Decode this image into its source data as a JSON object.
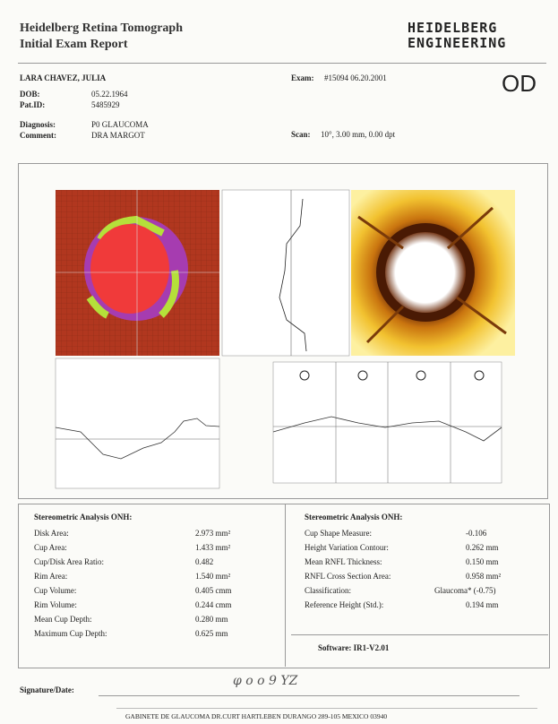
{
  "header": {
    "title": "Heidelberg Retina Tomograph",
    "subtitle": "Initial Exam Report",
    "logo_top": "HEIDELBERG",
    "logo_bottom": "ENGINEERING"
  },
  "patient": {
    "name": "LARA CHAVEZ, JULIA",
    "exam_label": "Exam:",
    "exam": "#15094  06.20.2001",
    "eye": "OD",
    "fields": [
      [
        "DOB:",
        "05.22.1964"
      ],
      [
        "Pat.ID:",
        "5485929"
      ],
      [
        "Diagnosis:",
        "P0 GLAUCOMA"
      ],
      [
        "Comment:",
        "DRA MARGOT"
      ]
    ],
    "scan_label": "Scan:",
    "scan": "10°,  3.00 mm,  0.00 dpt"
  },
  "left_table": {
    "title": "Stereometric Analysis ONH:",
    "rows": [
      [
        "Disk Area:",
        "2.973 mm²"
      ],
      [
        "Cup Area:",
        "1.433 mm²"
      ],
      [
        "Cup/Disk Area Ratio:",
        "0.482"
      ],
      [
        "Rim Area:",
        "1.540 mm²"
      ],
      [
        "Cup Volume:",
        "0.405 cmm"
      ],
      [
        "Rim Volume:",
        "0.244 cmm"
      ],
      [
        "Mean Cup Depth:",
        "0.280 mm"
      ],
      [
        "Maximum Cup Depth:",
        "0.625 mm"
      ]
    ]
  },
  "right_table": {
    "title": "Stereometric Analysis ONH:",
    "rows": [
      [
        "Cup Shape Measure:",
        "-0.106"
      ],
      [
        "Height Variation Contour:",
        "0.262 mm"
      ],
      [
        "Mean RNFL Thickness:",
        "0.150 mm"
      ],
      [
        "RNFL Cross Section Area:",
        "0.958 mm²"
      ],
      [
        "Classification:",
        "Glaucoma*  (-0.75)"
      ],
      [
        "Reference Height (Std.):",
        "0.194 mm"
      ]
    ],
    "software": "Software:  IR1-V2.01"
  },
  "signature": {
    "label": "Signature/Date:",
    "handwriting": "φ o o 9 YZ"
  },
  "footer": "GABINETE DE GLAUCOMA DR.CURT HARTLEBEN  DURANGO 289-105 MEXICO 03940"
}
